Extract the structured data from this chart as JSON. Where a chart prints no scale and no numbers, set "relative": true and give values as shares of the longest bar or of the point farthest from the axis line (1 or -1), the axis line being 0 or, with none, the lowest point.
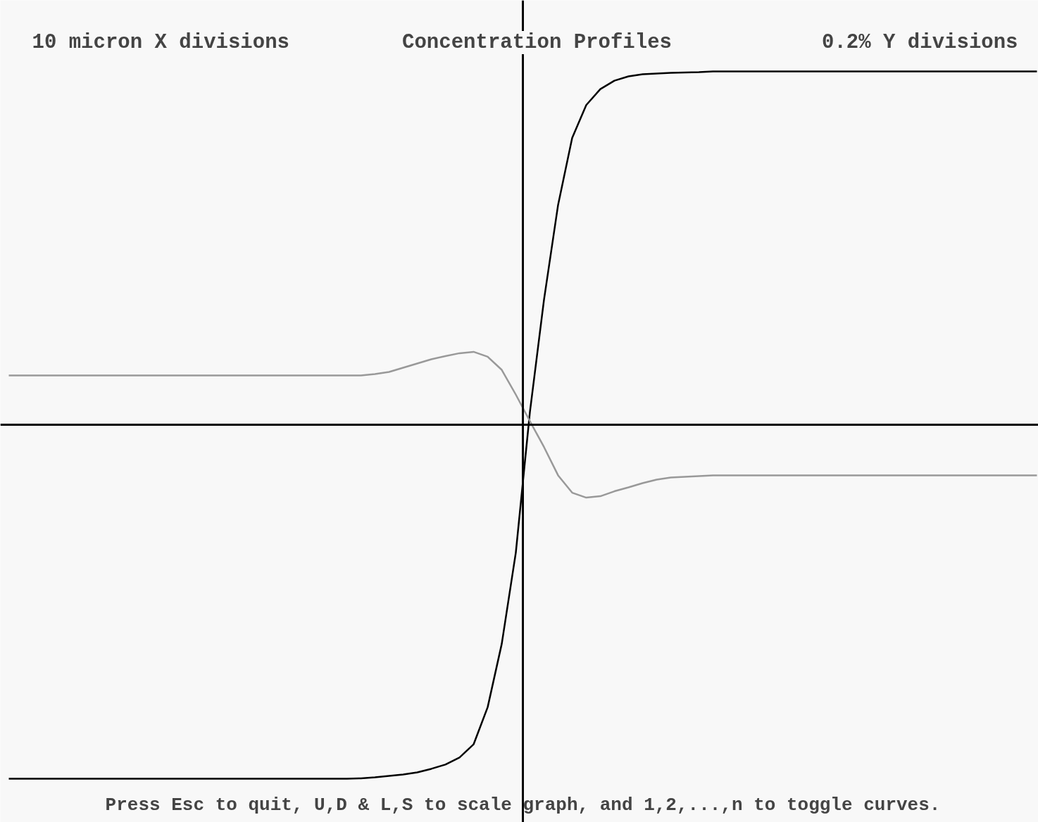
{
  "chart_data": {
    "type": "line",
    "title": "Concentration Profiles",
    "relative": true,
    "grid": false,
    "annotations": [
      "10 micron X divisions",
      "0.2% Y divisions",
      "Press Esc to quit, U,D & L,S to scale graph, and 1,2,...,n to toggle curves."
    ],
    "categories": [
      null,
      null,
      null,
      null,
      null,
      null,
      null,
      null,
      null,
      null,
      null,
      null,
      null,
      null,
      null,
      null,
      null,
      null,
      null,
      null,
      null,
      null,
      null,
      null,
      null,
      null,
      null,
      null,
      null,
      null,
      null,
      null,
      null,
      null,
      null,
      null,
      null,
      null,
      null,
      null,
      null,
      null,
      null,
      null,
      null,
      null,
      null,
      null,
      null,
      null,
      null,
      null,
      null,
      null,
      null,
      null,
      null,
      null,
      null,
      null,
      null,
      null,
      null,
      null,
      null,
      null,
      null,
      null,
      null,
      null,
      null,
      null,
      null,
      null
    ],
    "series": [
      {
        "color": "#000000",
        "values": [
          -1.0,
          -1.0,
          -1.0,
          -1.0,
          -1.0,
          -1.0,
          -1.0,
          -1.0,
          -1.0,
          -1.0,
          -1.0,
          -1.0,
          -1.0,
          -1.0,
          -1.0,
          -1.0,
          -1.0,
          -1.0,
          -1.0,
          -1.0,
          -1.0,
          -1.0,
          -1.0,
          -1.0,
          -1.0,
          -0.999,
          -0.996,
          -0.992,
          -0.988,
          -0.982,
          -0.972,
          -0.96,
          -0.94,
          -0.903,
          -0.798,
          -0.619,
          -0.361,
          0.036,
          0.353,
          0.621,
          0.81,
          0.903,
          0.948,
          0.972,
          0.984,
          0.99,
          0.992,
          0.994,
          0.995,
          0.996,
          0.998,
          0.998,
          0.998,
          0.998,
          0.998,
          0.998,
          0.998,
          0.998,
          0.998,
          0.998,
          0.998,
          0.998,
          0.998,
          0.998,
          0.998,
          0.998,
          0.998,
          0.998,
          0.998,
          0.998,
          0.998,
          0.998,
          0.998,
          0.998
        ]
      },
      {
        "color": "#999999",
        "values": [
          0.139,
          0.139,
          0.139,
          0.139,
          0.139,
          0.139,
          0.139,
          0.139,
          0.139,
          0.139,
          0.139,
          0.139,
          0.139,
          0.139,
          0.139,
          0.139,
          0.139,
          0.139,
          0.139,
          0.139,
          0.139,
          0.139,
          0.139,
          0.139,
          0.139,
          0.139,
          0.143,
          0.149,
          0.161,
          0.173,
          0.185,
          0.194,
          0.202,
          0.206,
          0.192,
          0.155,
          0.085,
          0.01,
          -0.063,
          -0.143,
          -0.192,
          -0.206,
          -0.202,
          -0.188,
          -0.177,
          -0.165,
          -0.155,
          -0.149,
          -0.147,
          -0.145,
          -0.143,
          -0.143,
          -0.143,
          -0.143,
          -0.143,
          -0.143,
          -0.143,
          -0.143,
          -0.143,
          -0.143,
          -0.143,
          -0.143,
          -0.143,
          -0.143,
          -0.143,
          -0.143,
          -0.143,
          -0.143,
          -0.143,
          -0.143,
          -0.143,
          -0.143,
          -0.143,
          -0.143
        ]
      }
    ],
    "line_style": "solid",
    "marker": "none"
  }
}
